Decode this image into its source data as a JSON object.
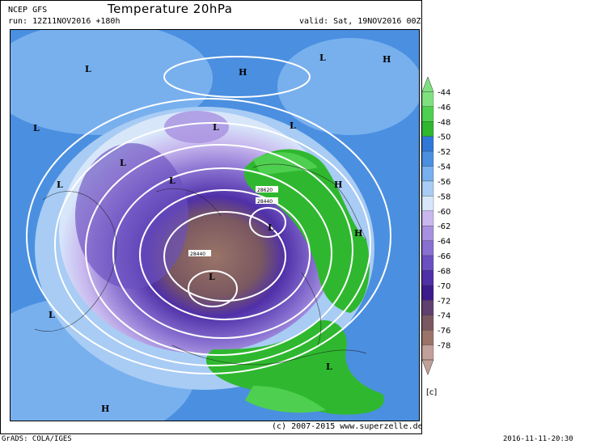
{
  "header": {
    "source": "NCEP GFS",
    "title": "Temperature 20hPa",
    "run": "run: 12Z11NOV2016 +180h",
    "valid": "valid: Sat, 19NOV2016 00Z"
  },
  "footer": {
    "copyright": "(c) 2007-2015 www.superzelle.de",
    "grads": "GrADS: COLA/IGES",
    "timestamp": "2016-11-11-20:30"
  },
  "legend": {
    "unit": "[c]",
    "levels": [
      "-44",
      "-46",
      "-48",
      "-50",
      "-52",
      "-54",
      "-56",
      "-58",
      "-60",
      "-62",
      "-64",
      "-66",
      "-68",
      "-70",
      "-72",
      "-74",
      "-76",
      "-78"
    ],
    "colors": [
      "#7fe07f",
      "#4fcf4f",
      "#2fb82f",
      "#2f78d8",
      "#4b8fe0",
      "#78b0ee",
      "#a8ccf4",
      "#d8e6fa",
      "#c8b8ee",
      "#a890e0",
      "#8870d0",
      "#6a50c0",
      "#5030a8",
      "#3c1c8c",
      "#604070",
      "#7a5860",
      "#9a7468",
      "#c0a098"
    ]
  },
  "map_labels": {
    "lows": [
      "L",
      "L",
      "L",
      "L",
      "L",
      "L",
      "L",
      "L",
      "L",
      "L",
      "L",
      "L"
    ],
    "highs": [
      "H",
      "H",
      "H",
      "H",
      "H"
    ],
    "contours": [
      "28620",
      "28440",
      "28440"
    ]
  }
}
